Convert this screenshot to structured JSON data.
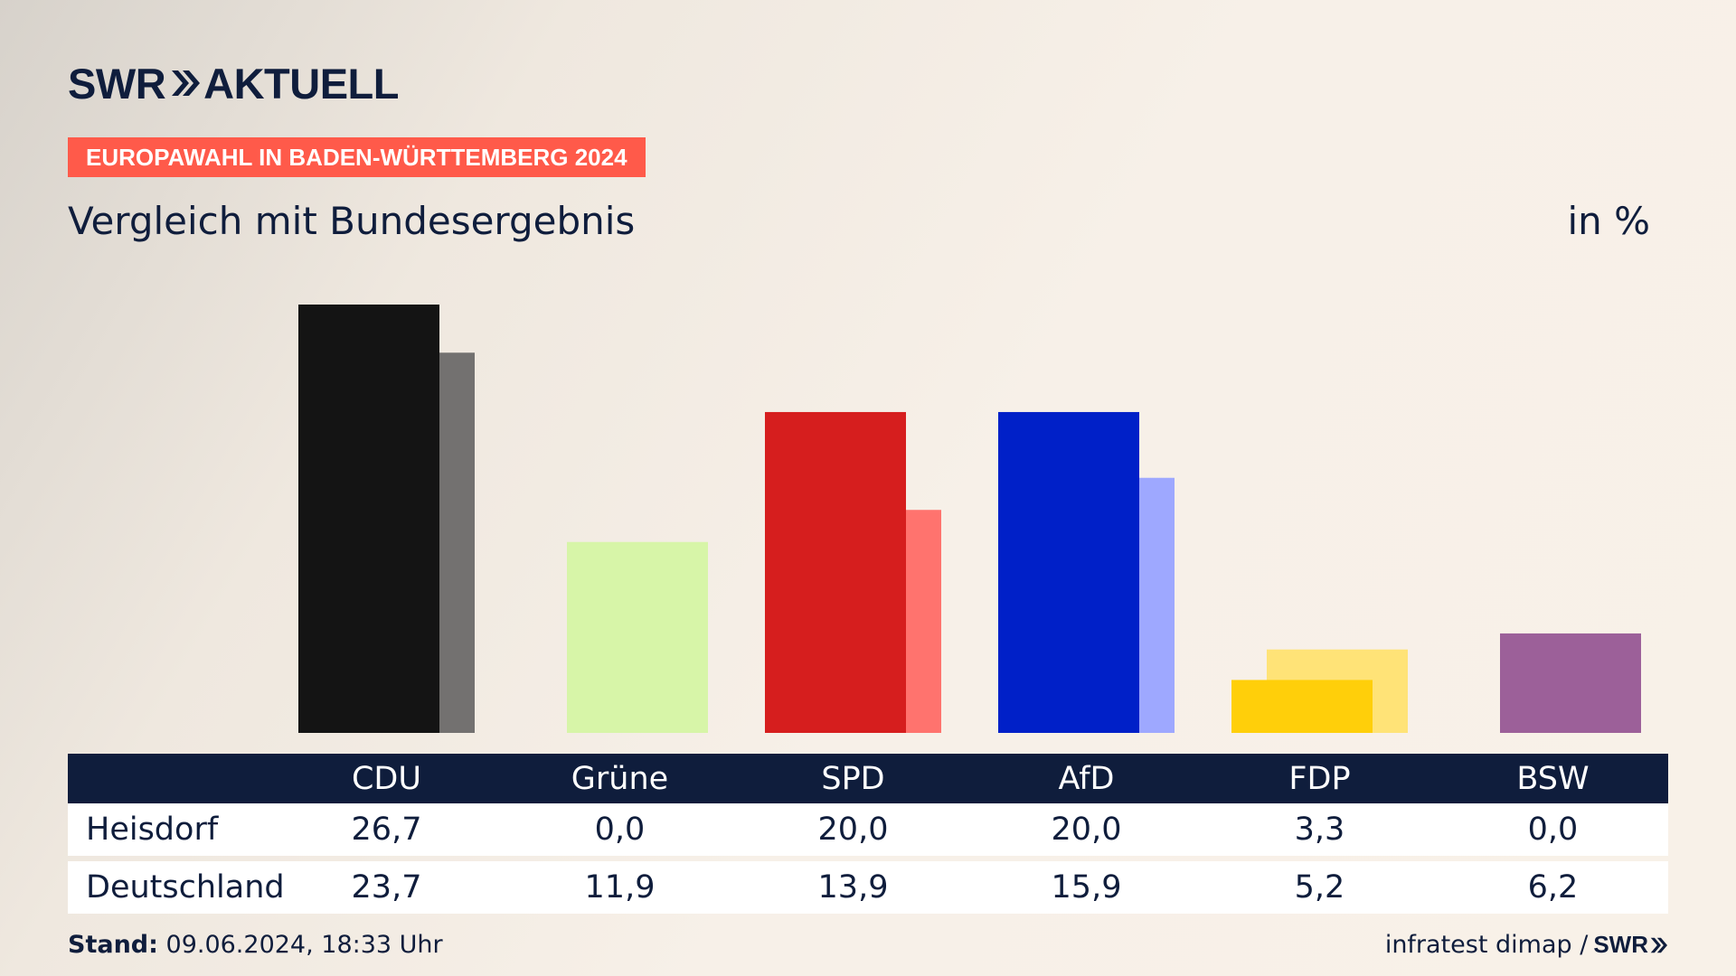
{
  "header": {
    "brand": "SWR",
    "product": "AKTUELL",
    "topic": "EUROPAWAHL IN BADEN-WÜRTTEMBERG 2024",
    "subtitle": "Vergleich mit Bundesergebnis",
    "unit": "in %"
  },
  "colors": {
    "navy": "#0f1d3c",
    "topic_bg": "#ff5a4a"
  },
  "chart_data": {
    "type": "bar",
    "categories": [
      "CDU",
      "Grüne",
      "SPD",
      "AfD",
      "FDP",
      "BSW"
    ],
    "series": [
      {
        "name": "Heisdorf",
        "values": [
          26.7,
          0.0,
          20.0,
          20.0,
          3.3,
          0.0
        ],
        "colors": [
          "#141414",
          "#d7f5a8",
          "#d61e1e",
          "#0020c8",
          "#ffcf0a",
          "#9c6099"
        ]
      },
      {
        "name": "Deutschland",
        "values": [
          23.7,
          11.9,
          13.9,
          15.9,
          5.2,
          6.2
        ],
        "colors": [
          "#737170",
          "#d7f5a8",
          "#ff736e",
          "#9ea8ff",
          "#ffe377",
          "#9c6099"
        ]
      }
    ],
    "ylim": [
      0,
      30
    ],
    "grid": false,
    "legend": "table-below"
  },
  "table": {
    "rows": [
      {
        "label": "Heisdorf",
        "values": [
          "26,7",
          "0,0",
          "20,0",
          "20,0",
          "3,3",
          "0,0"
        ]
      },
      {
        "label": "Deutschland",
        "values": [
          "23,7",
          "11,9",
          "13,9",
          "15,9",
          "5,2",
          "6,2"
        ]
      }
    ]
  },
  "footer": {
    "stand_label": "Stand:",
    "stand_value": "09.06.2024, 18:33 Uhr",
    "source": "infratest dimap /",
    "source_brand": "SWR"
  }
}
